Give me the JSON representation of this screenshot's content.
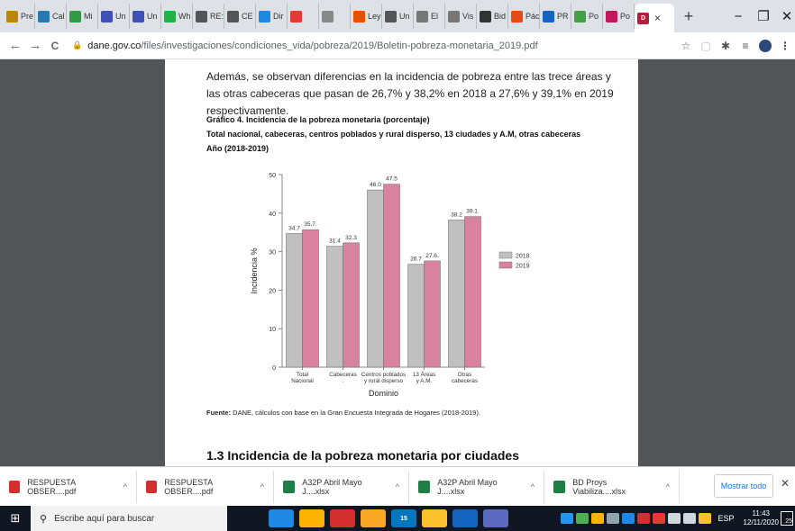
{
  "browser": {
    "tabs": [
      {
        "label": "Pre",
        "icon": "bookmark-icon",
        "color": "#b8860b"
      },
      {
        "label": "Cal",
        "icon": "sheet-icon",
        "color": "#2a7ab0"
      },
      {
        "label": "Mi",
        "icon": "flag-icon",
        "color": "#2e9c44"
      },
      {
        "label": "Un",
        "icon": "teams-icon",
        "color": "#3f51b5"
      },
      {
        "label": "Un",
        "icon": "teams-icon",
        "color": "#3f51b5"
      },
      {
        "label": "Wh",
        "icon": "whatsapp-icon",
        "color": "#25b04b"
      },
      {
        "label": "RE:",
        "icon": "globe-icon",
        "color": "#555555"
      },
      {
        "label": "CE",
        "icon": "globe-icon",
        "color": "#555555"
      },
      {
        "label": "Dir",
        "icon": "document-icon",
        "color": "#1e88e5"
      },
      {
        "label": "",
        "icon": "youtube-icon",
        "color": "#e53935"
      },
      {
        "label": "",
        "icon": "audio-icon",
        "color": "#888888"
      },
      {
        "label": "Ley",
        "icon": "sigma-icon",
        "color": "#e65100"
      },
      {
        "label": "Un",
        "icon": "globe-icon",
        "color": "#555555"
      },
      {
        "label": "El",
        "icon": "pdf-icon",
        "color": "#777777"
      },
      {
        "label": "Vis",
        "icon": "pdf-icon",
        "color": "#777777"
      },
      {
        "label": "Bid",
        "icon": "bid-icon",
        "color": "#333333"
      },
      {
        "label": "Pác",
        "icon": "office-icon",
        "color": "#e64a19"
      },
      {
        "label": "PR",
        "icon": "forms-icon",
        "color": "#1565c0"
      },
      {
        "label": "Po",
        "icon": "d-icon",
        "color": "#43a047"
      },
      {
        "label": "Po",
        "icon": "d-icon",
        "color": "#c2185b"
      }
    ],
    "active_tab": {
      "label": "",
      "icon": "dane-icon",
      "color": "#b71c3c",
      "close": "×"
    },
    "new_tab": "+",
    "window": {
      "minimize": "−",
      "maximize": "❐",
      "close": "✕"
    },
    "nav": {
      "back": "←",
      "forward": "→",
      "reload": "C"
    },
    "url_host": "dane.gov.co",
    "url_path": "/files/investigaciones/condiciones_vida/pobreza/2019/Boletin-pobreza-monetaria_2019.pdf"
  },
  "document": {
    "paragraph": "Además, se observan diferencias en la incidencia de pobreza entre las trece áreas y las otras cabeceras que pasan de 26,7% y 38,2% en 2018 a 27,6% y 39,1% en 2019 respectivamente.",
    "graph_title_1": "Gráfico 4. Incidencia de la pobreza monetaria (porcentaje)",
    "graph_title_2": "Total nacional, cabeceras, centros poblados y rural disperso, 13 ciudades y A.M, otras cabeceras",
    "graph_title_3": "Año (2018-2019)",
    "source_label": "Fuente:",
    "source_text": " DANE, cálculos con base en la Gran Encuesta Integrada de Hogares (2018-2019).",
    "section_heading": "1.3 Incidencia de la pobreza monetaria por ciudades"
  },
  "chart_data": {
    "type": "bar",
    "categories": [
      "Total Nacional",
      "Cabeceras",
      "Centros poblados y rural disperso",
      "13 Áreas y A.M.",
      "Otras cabeceras"
    ],
    "category_lines": [
      [
        "Total",
        "Nacional"
      ],
      [
        "Cabeceras",
        "."
      ],
      [
        "Centros poblados",
        "y rural disperso"
      ],
      [
        "13 Áreas",
        "y A.M."
      ],
      [
        "Otras",
        "cabeceras"
      ]
    ],
    "series": [
      {
        "name": "2018",
        "values": [
          34.7,
          31.4,
          46.0,
          26.7,
          38.2
        ],
        "labels": [
          "34.7",
          "31.4",
          "46.0",
          "26.7",
          "38.2"
        ],
        "color": "#c0c0c0"
      },
      {
        "name": "2019",
        "values": [
          35.7,
          32.3,
          47.5,
          27.6,
          39.1
        ],
        "labels": [
          "35.7.",
          "32.3",
          "47.5",
          "27.6.",
          "39.1."
        ],
        "color": "#d9829f"
      }
    ],
    "ylim": [
      0,
      50
    ],
    "yticks": [
      0,
      10,
      20,
      30,
      40,
      50
    ],
    "ylabel": "Incidencia %",
    "xlabel": "Dominio",
    "legend_position": "right",
    "grid": false
  },
  "downloads": {
    "items": [
      {
        "name": "RESPUESTA OBSER....pdf",
        "icon": "pdf-file-icon",
        "color": "#d32f2f"
      },
      {
        "name": "RESPUESTA OBSER....pdf",
        "icon": "pdf-file-icon",
        "color": "#d32f2f"
      },
      {
        "name": "A32P Abril Mayo J....xlsx",
        "icon": "excel-file-icon",
        "color": "#1e7e45"
      },
      {
        "name": "A32P Abril Mayo J....xlsx",
        "icon": "excel-file-icon",
        "color": "#1e7e45"
      },
      {
        "name": "BD Proys Viabiliza....xlsx",
        "icon": "excel-file-icon",
        "color": "#1e7e45"
      }
    ],
    "caret": "^",
    "show_all": "Mostrar todo",
    "close": "✕"
  },
  "taskbar": {
    "search_placeholder": "Escribe aquí para buscar",
    "apps": [
      {
        "icon": "edge-icon",
        "color": "#1e88e5"
      },
      {
        "icon": "store-icon",
        "color": "#ffb300"
      },
      {
        "icon": "mcafee-icon",
        "color": "#d32f2f"
      },
      {
        "icon": "file-explorer-icon",
        "color": "#f9a825"
      },
      {
        "icon": "photos-icon",
        "color": "#0277bd",
        "badge": "15"
      },
      {
        "icon": "chrome-icon",
        "color": "#fbc02d"
      },
      {
        "icon": "word-icon",
        "color": "#1565c0"
      },
      {
        "icon": "teams-icon",
        "color": "#5c6bc0"
      }
    ],
    "language": "ESP",
    "time": "11:43",
    "date": "12/11/2020",
    "notifications": "25"
  }
}
